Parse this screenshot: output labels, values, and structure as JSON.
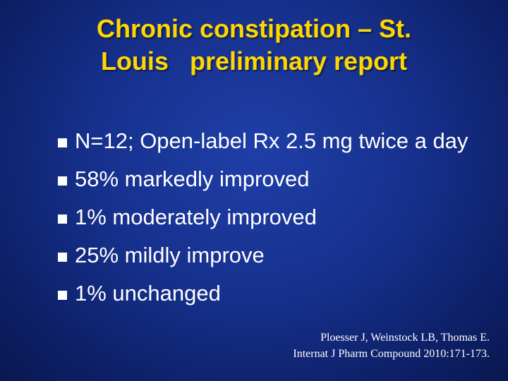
{
  "slide": {
    "title_lines": [
      "Chronic constipation – St.",
      "Louis   preliminary report"
    ],
    "bullets": [
      "N=12; Open-label Rx 2.5 mg twice a day",
      "58% markedly improved",
      "1% moderately improved",
      "25% mildly improve",
      "1% unchanged"
    ],
    "citation_lines": [
      "Ploesser J, Weinstock LB, Thomas E.",
      "Internat J Pharm Compound 2010:171-173."
    ],
    "colors": {
      "background": "#16308c",
      "title": "#ffd700",
      "text": "#ffffff"
    },
    "icons": {
      "bullet": "square-bullet-icon"
    }
  }
}
